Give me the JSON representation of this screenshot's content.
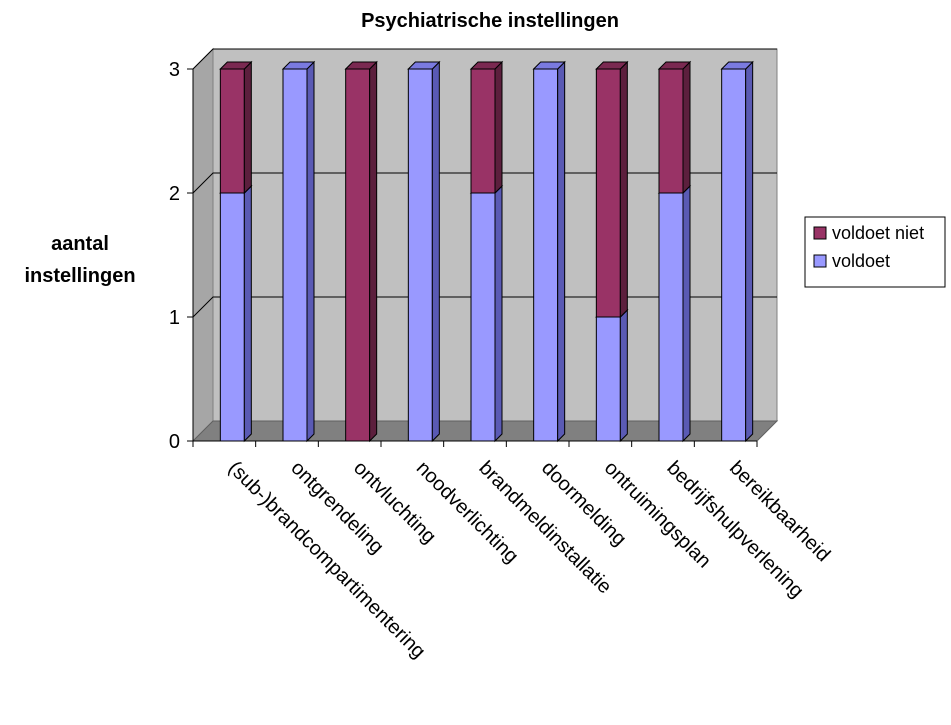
{
  "chart_data": {
    "type": "bar",
    "stacked": true,
    "three_d": true,
    "title": "Psychiatrische instellingen",
    "ylabel": [
      "aantal",
      "instellingen"
    ],
    "xlabel": "",
    "ylim": [
      0,
      3
    ],
    "yticks": [
      "0",
      "1",
      "2",
      "3"
    ],
    "grid": true,
    "legend_position": "right",
    "categories": [
      "(sub-)brandcompartimentering",
      "ontgrendeling",
      "ontvluchting",
      "noodverlichting",
      "brandmeldinstallatie",
      "doormelding",
      "ontruimingsplan",
      "bedrijfshulpverlening",
      "bereikbaarheid"
    ],
    "series": [
      {
        "name": "voldoet",
        "values": [
          2,
          3,
          0,
          3,
          2,
          3,
          1,
          2,
          3
        ],
        "color": "#9999ff",
        "side": "#5a5ab4",
        "top": "#7a7ae0"
      },
      {
        "name": "voldoet niet",
        "values": [
          1,
          0,
          3,
          0,
          1,
          0,
          2,
          1,
          0
        ],
        "color": "#993366",
        "side": "#5c1f3d",
        "top": "#7a2951"
      }
    ],
    "legend": [
      "voldoet niet",
      "voldoet"
    ]
  }
}
